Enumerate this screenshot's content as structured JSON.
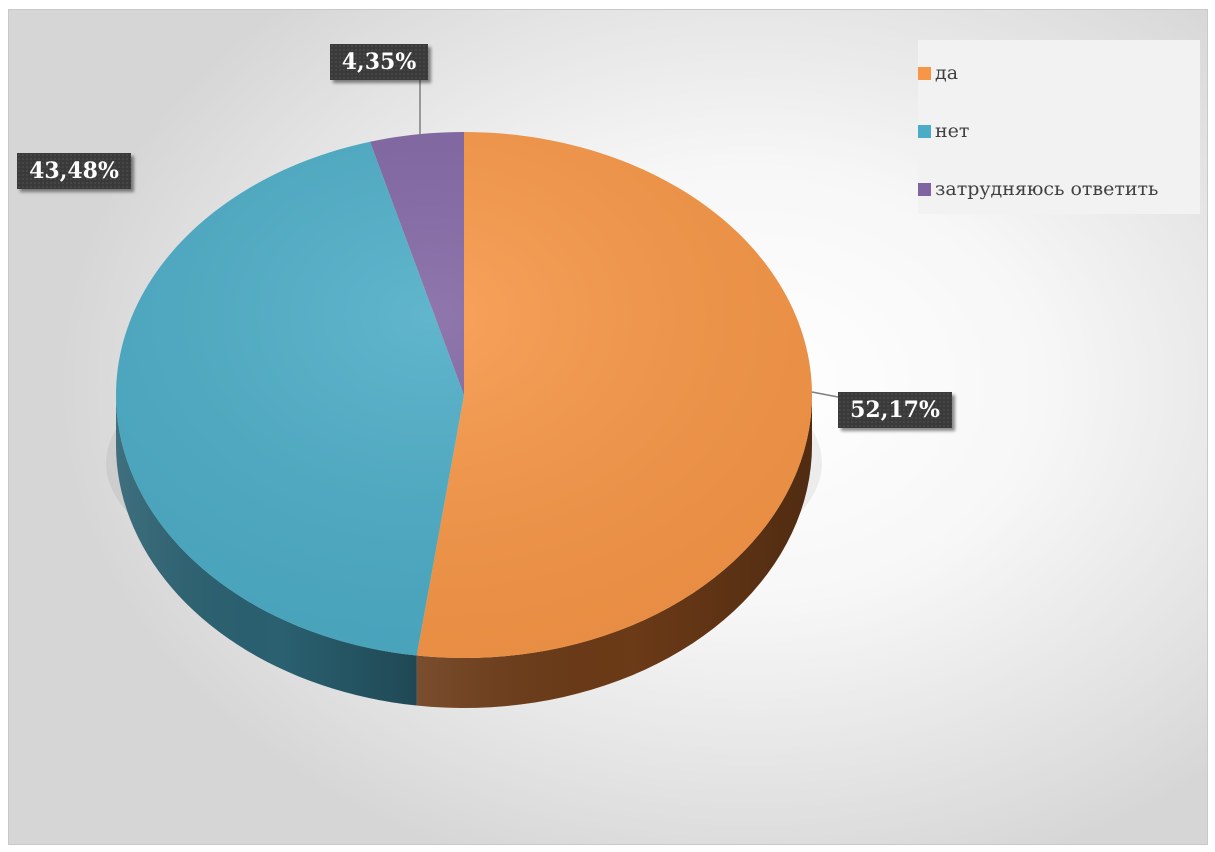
{
  "chart_data": {
    "type": "pie",
    "categories": [
      "да",
      "нет",
      "затрудняюсь ответить"
    ],
    "values": [
      52.17,
      43.48,
      4.35
    ],
    "value_labels": [
      "52,17%",
      "43,48%",
      "4,35%"
    ],
    "legend_placement": "top-right",
    "colors": {
      "top": [
        "#F79646",
        "#4BACC6",
        "#8064A2"
      ],
      "side": [
        "#6B3A17",
        "#2A6070",
        "#3D2E52"
      ]
    },
    "title": ""
  }
}
